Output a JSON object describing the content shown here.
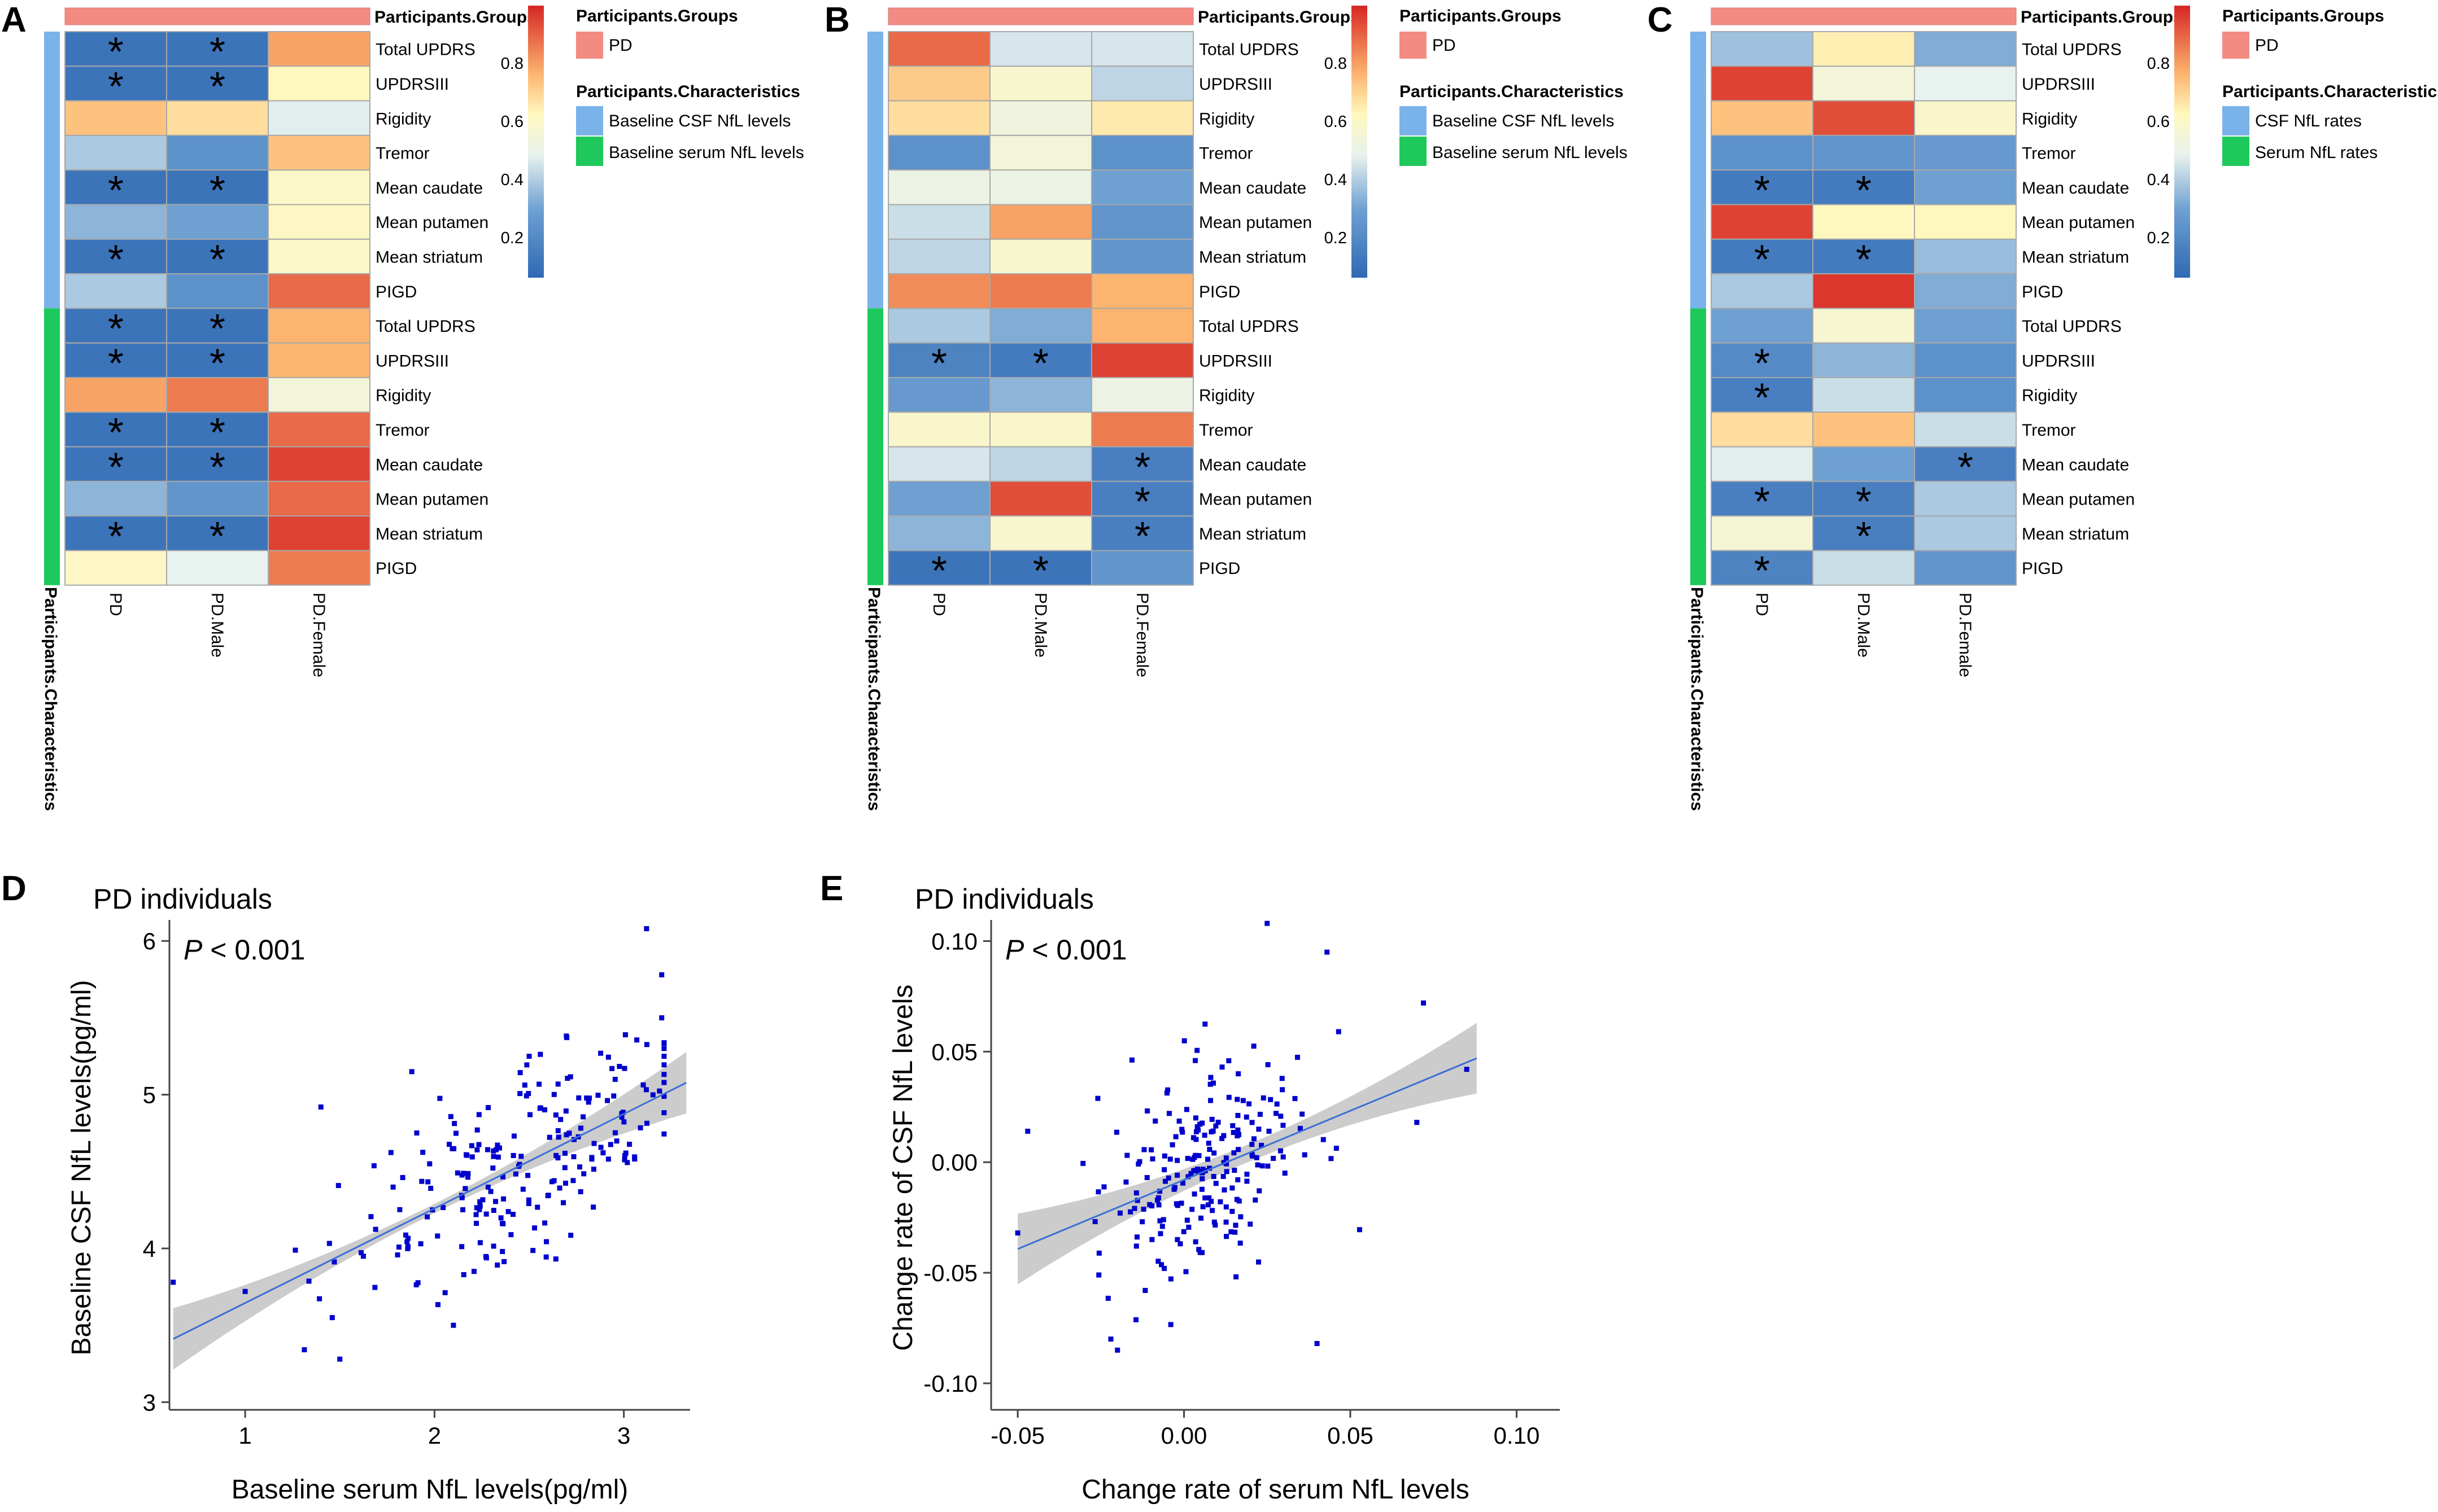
{
  "colors": {
    "pd_group": "#f28b82",
    "csf": "#7ab2ea",
    "serum": "#1ec85a",
    "point": "#0000cc",
    "fit_line": "#3b6fd6",
    "ci_band": "#cccccc"
  },
  "heatmap_common": {
    "row_labels": [
      "Total UPDRS",
      "UPDRSIII",
      "Rigidity",
      "Tremor",
      "Mean caudate",
      "Mean putamen",
      "Mean striatum",
      "PIGD"
    ],
    "columns": [
      "PD",
      "PD.Male",
      "PD.Female"
    ],
    "top_annotation_label": "Participants.Groups",
    "side_annotation_label": "Participants.Characteristics",
    "scale_ticks": [
      "0.8",
      "0.6",
      "0.4",
      "0.2"
    ],
    "legend_groups_title": "Participants.Groups",
    "legend_groups_item": "PD",
    "legend_chars_title": "Participants.Characteristics"
  },
  "chart_data": [
    {
      "panel": "A",
      "type": "heatmap",
      "legend_items": [
        "Baseline CSF NfL levels",
        "Baseline serum NfL levels"
      ],
      "row_groups": [
        "Baseline CSF NfL levels",
        "Baseline serum NfL levels"
      ],
      "values": [
        [
          0.05,
          0.05,
          0.78
        ],
        [
          0.05,
          0.05,
          0.6
        ],
        [
          0.72,
          0.66,
          0.44
        ],
        [
          0.35,
          0.18,
          0.72
        ],
        [
          0.05,
          0.05,
          0.57
        ],
        [
          0.3,
          0.25,
          0.58
        ],
        [
          0.05,
          0.05,
          0.57
        ],
        [
          0.35,
          0.18,
          0.88
        ],
        [
          0.05,
          0.05,
          0.75
        ],
        [
          0.05,
          0.05,
          0.75
        ],
        [
          0.78,
          0.85,
          0.52
        ],
        [
          0.05,
          0.05,
          0.88
        ],
        [
          0.05,
          0.05,
          0.95
        ],
        [
          0.3,
          0.2,
          0.88
        ],
        [
          0.05,
          0.05,
          0.95
        ],
        [
          0.58,
          0.45,
          0.85
        ]
      ],
      "significant": [
        [
          1,
          1,
          0
        ],
        [
          1,
          1,
          0
        ],
        [
          0,
          0,
          0
        ],
        [
          0,
          0,
          0
        ],
        [
          1,
          1,
          0
        ],
        [
          0,
          0,
          0
        ],
        [
          1,
          1,
          0
        ],
        [
          0,
          0,
          0
        ],
        [
          1,
          1,
          0
        ],
        [
          1,
          1,
          0
        ],
        [
          0,
          0,
          0
        ],
        [
          1,
          1,
          0
        ],
        [
          1,
          1,
          0
        ],
        [
          0,
          0,
          0
        ],
        [
          1,
          1,
          0
        ],
        [
          0,
          0,
          0
        ]
      ]
    },
    {
      "panel": "B",
      "type": "heatmap",
      "legend_items": [
        "Baseline CSF NfL levels",
        "Baseline serum NfL levels"
      ],
      "row_groups": [
        "Baseline CSF NfL levels",
        "Baseline serum NfL levels"
      ],
      "values": [
        [
          0.88,
          0.42,
          0.42
        ],
        [
          0.7,
          0.55,
          0.38
        ],
        [
          0.66,
          0.5,
          0.63
        ],
        [
          0.18,
          0.52,
          0.18
        ],
        [
          0.48,
          0.48,
          0.25
        ],
        [
          0.4,
          0.78,
          0.2
        ],
        [
          0.38,
          0.55,
          0.2
        ],
        [
          0.82,
          0.85,
          0.75
        ],
        [
          0.35,
          0.28,
          0.75
        ],
        [
          0.12,
          0.08,
          0.95
        ],
        [
          0.22,
          0.3,
          0.48
        ],
        [
          0.56,
          0.56,
          0.85
        ],
        [
          0.42,
          0.38,
          0.1
        ],
        [
          0.25,
          0.93,
          0.1
        ],
        [
          0.3,
          0.55,
          0.1
        ],
        [
          0.05,
          0.05,
          0.2
        ]
      ],
      "significant": [
        [
          0,
          0,
          0
        ],
        [
          0,
          0,
          0
        ],
        [
          0,
          0,
          0
        ],
        [
          0,
          0,
          0
        ],
        [
          0,
          0,
          0
        ],
        [
          0,
          0,
          0
        ],
        [
          0,
          0,
          0
        ],
        [
          0,
          0,
          0
        ],
        [
          0,
          0,
          0
        ],
        [
          1,
          1,
          0
        ],
        [
          0,
          0,
          0
        ],
        [
          0,
          0,
          0
        ],
        [
          0,
          0,
          1
        ],
        [
          0,
          0,
          1
        ],
        [
          0,
          0,
          1
        ],
        [
          1,
          1,
          0
        ]
      ]
    },
    {
      "panel": "C",
      "type": "heatmap",
      "legend_items": [
        "CSF NfL rates",
        "Serum NfL rates"
      ],
      "row_groups": [
        "CSF NfL rates",
        "Serum NfL rates"
      ],
      "values": [
        [
          0.33,
          0.62,
          0.28
        ],
        [
          0.95,
          0.52,
          0.45
        ],
        [
          0.72,
          0.93,
          0.56
        ],
        [
          0.18,
          0.2,
          0.22
        ],
        [
          0.08,
          0.08,
          0.25
        ],
        [
          0.95,
          0.6,
          0.6
        ],
        [
          0.08,
          0.08,
          0.32
        ],
        [
          0.35,
          0.97,
          0.28
        ],
        [
          0.25,
          0.54,
          0.25
        ],
        [
          0.15,
          0.3,
          0.18
        ],
        [
          0.1,
          0.4,
          0.18
        ],
        [
          0.66,
          0.72,
          0.4
        ],
        [
          0.44,
          0.25,
          0.1
        ],
        [
          0.1,
          0.1,
          0.35
        ],
        [
          0.53,
          0.1,
          0.35
        ],
        [
          0.12,
          0.4,
          0.2
        ]
      ],
      "significant": [
        [
          0,
          0,
          0
        ],
        [
          0,
          0,
          0
        ],
        [
          0,
          0,
          0
        ],
        [
          0,
          0,
          0
        ],
        [
          1,
          1,
          0
        ],
        [
          0,
          0,
          0
        ],
        [
          1,
          1,
          0
        ],
        [
          0,
          0,
          0
        ],
        [
          0,
          0,
          0
        ],
        [
          1,
          0,
          0
        ],
        [
          1,
          0,
          0
        ],
        [
          0,
          0,
          0
        ],
        [
          0,
          0,
          1
        ],
        [
          1,
          1,
          0
        ],
        [
          0,
          1,
          0
        ],
        [
          1,
          0,
          0
        ]
      ]
    },
    {
      "panel": "D",
      "type": "scatter",
      "title": "PD individuals",
      "p_label": "P",
      "p_text": " < 0.001",
      "xlabel": "Baseline serum NfL levels(pg/ml)",
      "ylabel": "Baseline CSF NfL levels(pg/ml)",
      "xlim": [
        0.6,
        3.35
      ],
      "ylim": [
        2.95,
        6.1
      ],
      "xticks": [
        1,
        2,
        3
      ],
      "xtick_labels": [
        "1",
        "2",
        "3"
      ],
      "yticks": [
        3,
        4,
        5,
        6
      ],
      "ytick_labels": [
        "3",
        "4",
        "5",
        "6"
      ],
      "fit": {
        "slope": 0.615,
        "intercept": 3.03,
        "x_range": [
          0.62,
          3.33
        ],
        "ci_half_min": 0.03,
        "ci_half_max": 0.2
      },
      "points_seed": 17,
      "points_count": 220,
      "points_x_mean": 2.4,
      "points_x_sd": 0.45,
      "points_noise": 0.32,
      "extra_points": [
        [
          0.62,
          3.78
        ],
        [
          1.0,
          3.72
        ],
        [
          1.4,
          4.92
        ],
        [
          1.5,
          3.28
        ],
        [
          1.46,
          3.55
        ],
        [
          1.88,
          5.15
        ],
        [
          2.1,
          3.5
        ],
        [
          3.12,
          6.08
        ],
        [
          3.2,
          5.78
        ],
        [
          3.2,
          5.5
        ],
        [
          2.5,
          5.25
        ]
      ]
    },
    {
      "panel": "E",
      "type": "scatter",
      "title": "PD individuals",
      "p_label": "P",
      "p_text": " < 0.001",
      "xlabel": "Change rate of serum NfL levels",
      "ylabel": "Change rate of CSF NfL levels",
      "xlim": [
        -0.058,
        0.113
      ],
      "ylim": [
        -0.112,
        0.107
      ],
      "xticks": [
        -0.05,
        0.0,
        0.05,
        0.1
      ],
      "xtick_labels": [
        "-0.05",
        "0.00",
        "0.05",
        "0.10"
      ],
      "yticks": [
        -0.1,
        -0.05,
        0.0,
        0.05,
        0.1
      ],
      "ytick_labels": [
        "-0.10",
        "-0.05",
        "0.00",
        "0.05",
        "0.10"
      ],
      "fit": {
        "slope": 0.625,
        "intercept": -0.008,
        "x_range": [
          -0.05,
          0.088
        ],
        "ci_half_min": 0.004,
        "ci_half_max": 0.016
      },
      "points_seed": 29,
      "points_count": 220,
      "points_x_mean": 0.008,
      "points_x_sd": 0.016,
      "points_noise": 0.023,
      "extra_points": [
        [
          -0.05,
          -0.032
        ],
        [
          -0.047,
          0.014
        ],
        [
          -0.02,
          -0.085
        ],
        [
          -0.022,
          -0.08
        ],
        [
          0.025,
          0.108
        ],
        [
          0.043,
          0.095
        ],
        [
          0.072,
          0.072
        ],
        [
          0.085,
          0.042
        ],
        [
          0.07,
          0.018
        ],
        [
          0.04,
          -0.082
        ]
      ]
    }
  ]
}
